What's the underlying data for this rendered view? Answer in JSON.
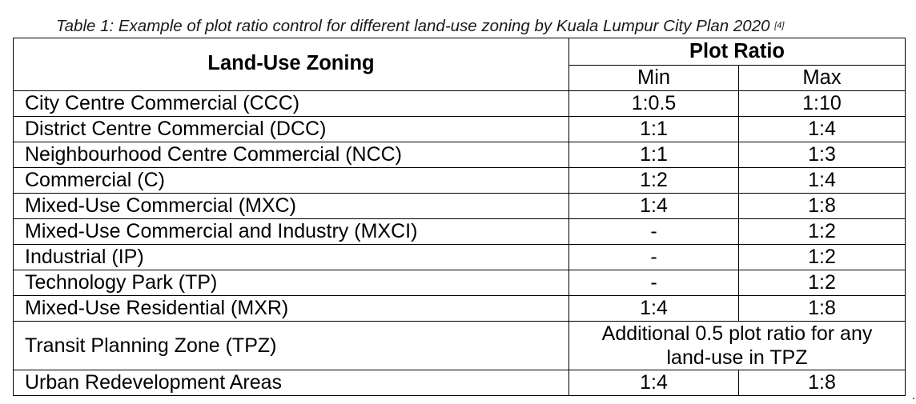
{
  "caption": {
    "text": "Table 1: Example of plot ratio control for different land-use zoning by Kuala Lumpur City Plan 2020 ",
    "reference": "[4]"
  },
  "table": {
    "headers": {
      "zoning": "Land-Use Zoning",
      "plot_ratio": "Plot Ratio",
      "min": "Min",
      "max": "Max"
    },
    "rows": [
      {
        "zone": "City Centre Commercial (CCC)",
        "min": "1:0.5",
        "max": "1:10"
      },
      {
        "zone": "District Centre Commercial (DCC)",
        "min": "1:1",
        "max": "1:4"
      },
      {
        "zone": "Neighbourhood Centre Commercial (NCC)",
        "min": "1:1",
        "max": "1:3"
      },
      {
        "zone": "Commercial (C)",
        "min": "1:2",
        "max": "1:4"
      },
      {
        "zone": "Mixed-Use Commercial (MXC)",
        "min": "1:4",
        "max": "1:8"
      },
      {
        "zone": "Mixed-Use Commercial and Industry (MXCI)",
        "min": "-",
        "max": "1:2"
      },
      {
        "zone": "Industrial (IP)",
        "min": "-",
        "max": "1:2"
      },
      {
        "zone": "Technology Park (TP)",
        "min": "-",
        "max": "1:2"
      },
      {
        "zone": "Mixed-Use Residential (MXR)",
        "min": "1:4",
        "max": "1:8"
      }
    ],
    "tpz_row": {
      "zone": "Transit Planning Zone (TPZ)",
      "note_line1": "Additional 0.5 plot ratio for any",
      "note_line2": "land-use in TPZ"
    },
    "last_row": {
      "zone": "Urban Redevelopment Areas",
      "min": "1:4",
      "max": "1:8"
    }
  }
}
